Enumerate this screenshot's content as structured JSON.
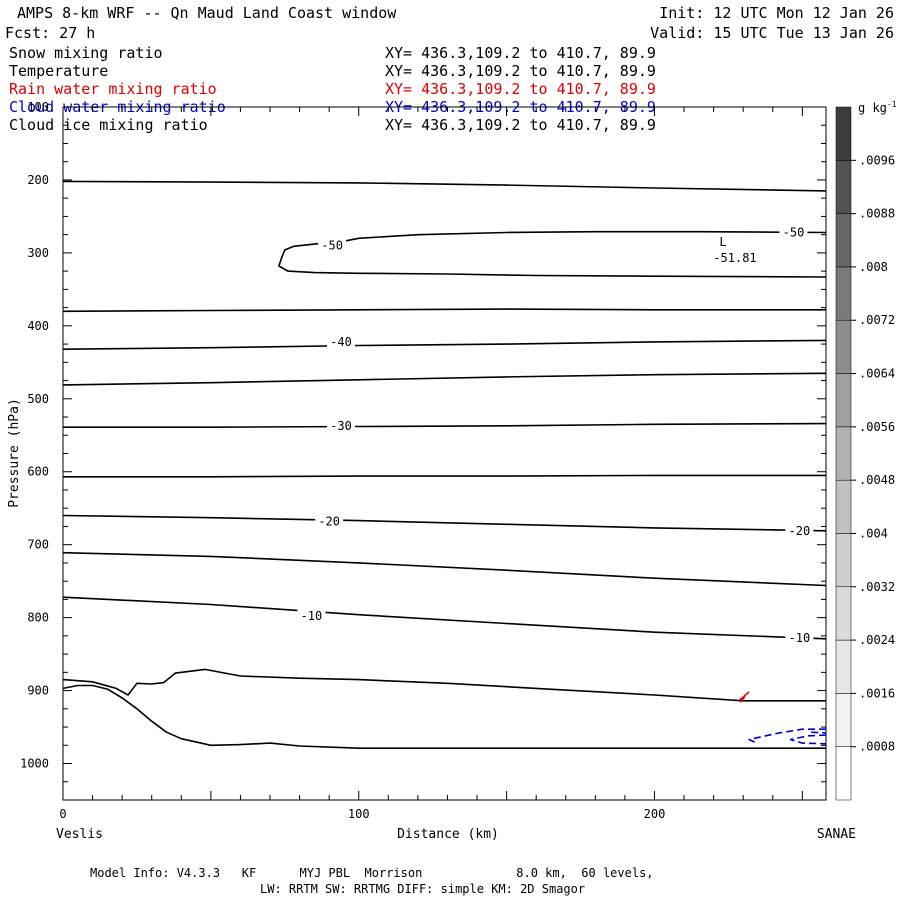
{
  "header": {
    "title": "AMPS 8-km WRF -- Qn Maud Land Coast window",
    "fcst": "Fcst:   27 h",
    "init": "Init: 12 UTC Mon 12 Jan 26",
    "valid": "Valid: 15 UTC Tue 13 Jan 26"
  },
  "fields": [
    {
      "name": "Snow mixing ratio",
      "xy": "XY= 436.3,109.2 to 410.7, 89.9",
      "color": "#000000"
    },
    {
      "name": "Temperature",
      "xy": "XY= 436.3,109.2 to 410.7, 89.9",
      "color": "#000000"
    },
    {
      "name": "Rain water mixing ratio",
      "xy": "XY= 436.3,109.2 to 410.7, 89.9",
      "color": "#e00000"
    },
    {
      "name": "Cloud water mixing ratio",
      "xy": "XY= 436.3,109.2 to 410.7, 89.9",
      "color": "#0000cc"
    },
    {
      "name": "Cloud ice mixing ratio",
      "xy": "XY= 436.3,109.2 to 410.7, 89.9",
      "color": "#000000"
    }
  ],
  "colorbar": {
    "unit": "g kg",
    "unit_exp": "-1",
    "labels": [
      ".0096",
      ".0088",
      ".008",
      ".0072",
      ".0064",
      ".0056",
      ".0048",
      ".004",
      ".0032",
      ".0024",
      ".0016",
      ".0008"
    ],
    "levels": [
      0.0008,
      0.0016,
      0.0024,
      0.0032,
      0.004,
      0.0048,
      0.0056,
      0.0064,
      0.0072,
      0.008,
      0.0088,
      0.0096,
      0.0104
    ],
    "colors": [
      "#ffffff",
      "#f2f2f2",
      "#e7e7e7",
      "#dbdbdb",
      "#cfcfcf",
      "#c1c1c1",
      "#b1b1b1",
      "#a0a0a0",
      "#8d8d8d",
      "#7a7a7a",
      "#666666",
      "#525252",
      "#3c3c3c"
    ]
  },
  "footer": {
    "line1": "Model Info: V4.3.3   KF      MYJ PBL  Morrison             8.0 km,  60 levels,",
    "line2": "LW: RRTM SW: RRTMG   DIFF: simple KM: 2D Smagor"
  },
  "chart_data": {
    "type": "line",
    "title": "AMPS 8-km WRF -- Qn Maud Land Coast window",
    "xlabel": "Distance (km)",
    "ylabel": "Pressure (hPa)",
    "xlim": [
      0,
      258
    ],
    "ylim": [
      1050,
      100
    ],
    "x_ticks": [
      0,
      100,
      200
    ],
    "y_ticks": [
      100,
      200,
      300,
      400,
      500,
      600,
      700,
      800,
      900,
      1000
    ],
    "x_start_label": "Veslis",
    "x_end_label": "SANAE",
    "low_marker": {
      "letter": "L",
      "value": "-51.81",
      "x": 222,
      "p": 298
    },
    "series": [
      {
        "name": "tropopause",
        "color": "#000000",
        "x": [
          0,
          50,
          100,
          150,
          200,
          258
        ],
        "p": [
          202,
          203,
          204,
          207,
          211,
          215
        ]
      },
      {
        "name": "-50",
        "label": "-50",
        "color": "#000000",
        "closed_label": true,
        "label_positions": [
          [
            91,
            290
          ],
          [
            247,
            272
          ]
        ],
        "x": [
          258,
          215,
          180,
          150,
          120,
          100,
          95,
          85,
          78,
          75,
          74,
          73,
          76,
          85,
          100,
          130,
          160,
          200,
          258
        ],
        "p": [
          272,
          271,
          271,
          272,
          275,
          280,
          284,
          288,
          291,
          296,
          306,
          318,
          325,
          327,
          328,
          329,
          331,
          332,
          333
        ]
      },
      {
        "name": "isotherm-380",
        "color": "#000000",
        "x": [
          0,
          50,
          100,
          150,
          200,
          258
        ],
        "p": [
          380,
          379,
          378,
          377,
          378,
          378
        ]
      },
      {
        "name": "-40",
        "label": "-40",
        "color": "#000000",
        "label_positions": [
          [
            94,
            422
          ]
        ],
        "x": [
          0,
          50,
          100,
          150,
          200,
          258
        ],
        "p": [
          432,
          430,
          427,
          425,
          422,
          420
        ]
      },
      {
        "name": "isotherm-480",
        "color": "#000000",
        "x": [
          0,
          50,
          100,
          150,
          200,
          258
        ],
        "p": [
          481,
          478,
          474,
          470,
          467,
          465
        ]
      },
      {
        "name": "-30",
        "label": "-30",
        "color": "#000000",
        "label_positions": [
          [
            94,
            537
          ]
        ],
        "x": [
          0,
          50,
          100,
          150,
          200,
          258
        ],
        "p": [
          539,
          539,
          538,
          537,
          535,
          534
        ]
      },
      {
        "name": "isotherm-605",
        "color": "#000000",
        "x": [
          0,
          50,
          100,
          150,
          200,
          258
        ],
        "p": [
          607,
          607,
          606,
          606,
          605,
          605
        ]
      },
      {
        "name": "-20",
        "label": "-20",
        "color": "#000000",
        "label_positions": [
          [
            90,
            668
          ],
          [
            249,
            681
          ]
        ],
        "x": [
          0,
          50,
          100,
          150,
          200,
          258
        ],
        "p": [
          660,
          663,
          667,
          672,
          677,
          681
        ]
      },
      {
        "name": "isotherm-710",
        "color": "#000000",
        "x": [
          0,
          50,
          100,
          150,
          200,
          258
        ],
        "p": [
          711,
          716,
          725,
          735,
          746,
          756
        ]
      },
      {
        "name": "-10",
        "label": "-10",
        "color": "#000000",
        "label_positions": [
          [
            84,
            798
          ],
          [
            249,
            828
          ]
        ],
        "x": [
          0,
          50,
          100,
          150,
          200,
          258
        ],
        "p": [
          772,
          782,
          796,
          808,
          820,
          829
        ]
      },
      {
        "name": "inversion-upper",
        "color": "#000000",
        "x": [
          0,
          10,
          18,
          22,
          25,
          30,
          34,
          38,
          48,
          60,
          80,
          100,
          130,
          160,
          200,
          230,
          258
        ],
        "p": [
          885,
          888,
          897,
          906,
          890,
          891,
          889,
          876,
          871,
          880,
          883,
          885,
          890,
          897,
          906,
          914,
          914
        ]
      },
      {
        "name": "surface",
        "color": "#000000",
        "x": [
          0,
          5,
          10,
          15,
          20,
          25,
          30,
          35,
          40,
          50,
          60,
          70,
          80,
          100,
          150,
          200,
          258
        ],
        "p": [
          897,
          893,
          893,
          898,
          910,
          925,
          942,
          957,
          966,
          975,
          974,
          972,
          976,
          979,
          979,
          979,
          979
        ]
      },
      {
        "name": "rain-water",
        "color": "#e00000",
        "dashed": true,
        "x": [
          229,
          231,
          229,
          232
        ],
        "p": [
          916,
          906,
          912,
          902
        ]
      },
      {
        "name": "cloud-water-1",
        "color": "#0000cc",
        "dashed": true,
        "x": [
          258,
          250,
          241,
          232,
          235
        ],
        "p": [
          953,
          953,
          959,
          967,
          973
        ]
      },
      {
        "name": "cloud-water-2",
        "color": "#0000cc",
        "dashed": true,
        "x": [
          258,
          252,
          246,
          250,
          258
        ],
        "p": [
          961,
          962,
          967,
          972,
          973
        ]
      },
      {
        "name": "cloud-water-3",
        "color": "#0000cc",
        "dashed": true,
        "x": [
          253,
          258
        ],
        "p": [
          957,
          958
        ]
      }
    ]
  }
}
